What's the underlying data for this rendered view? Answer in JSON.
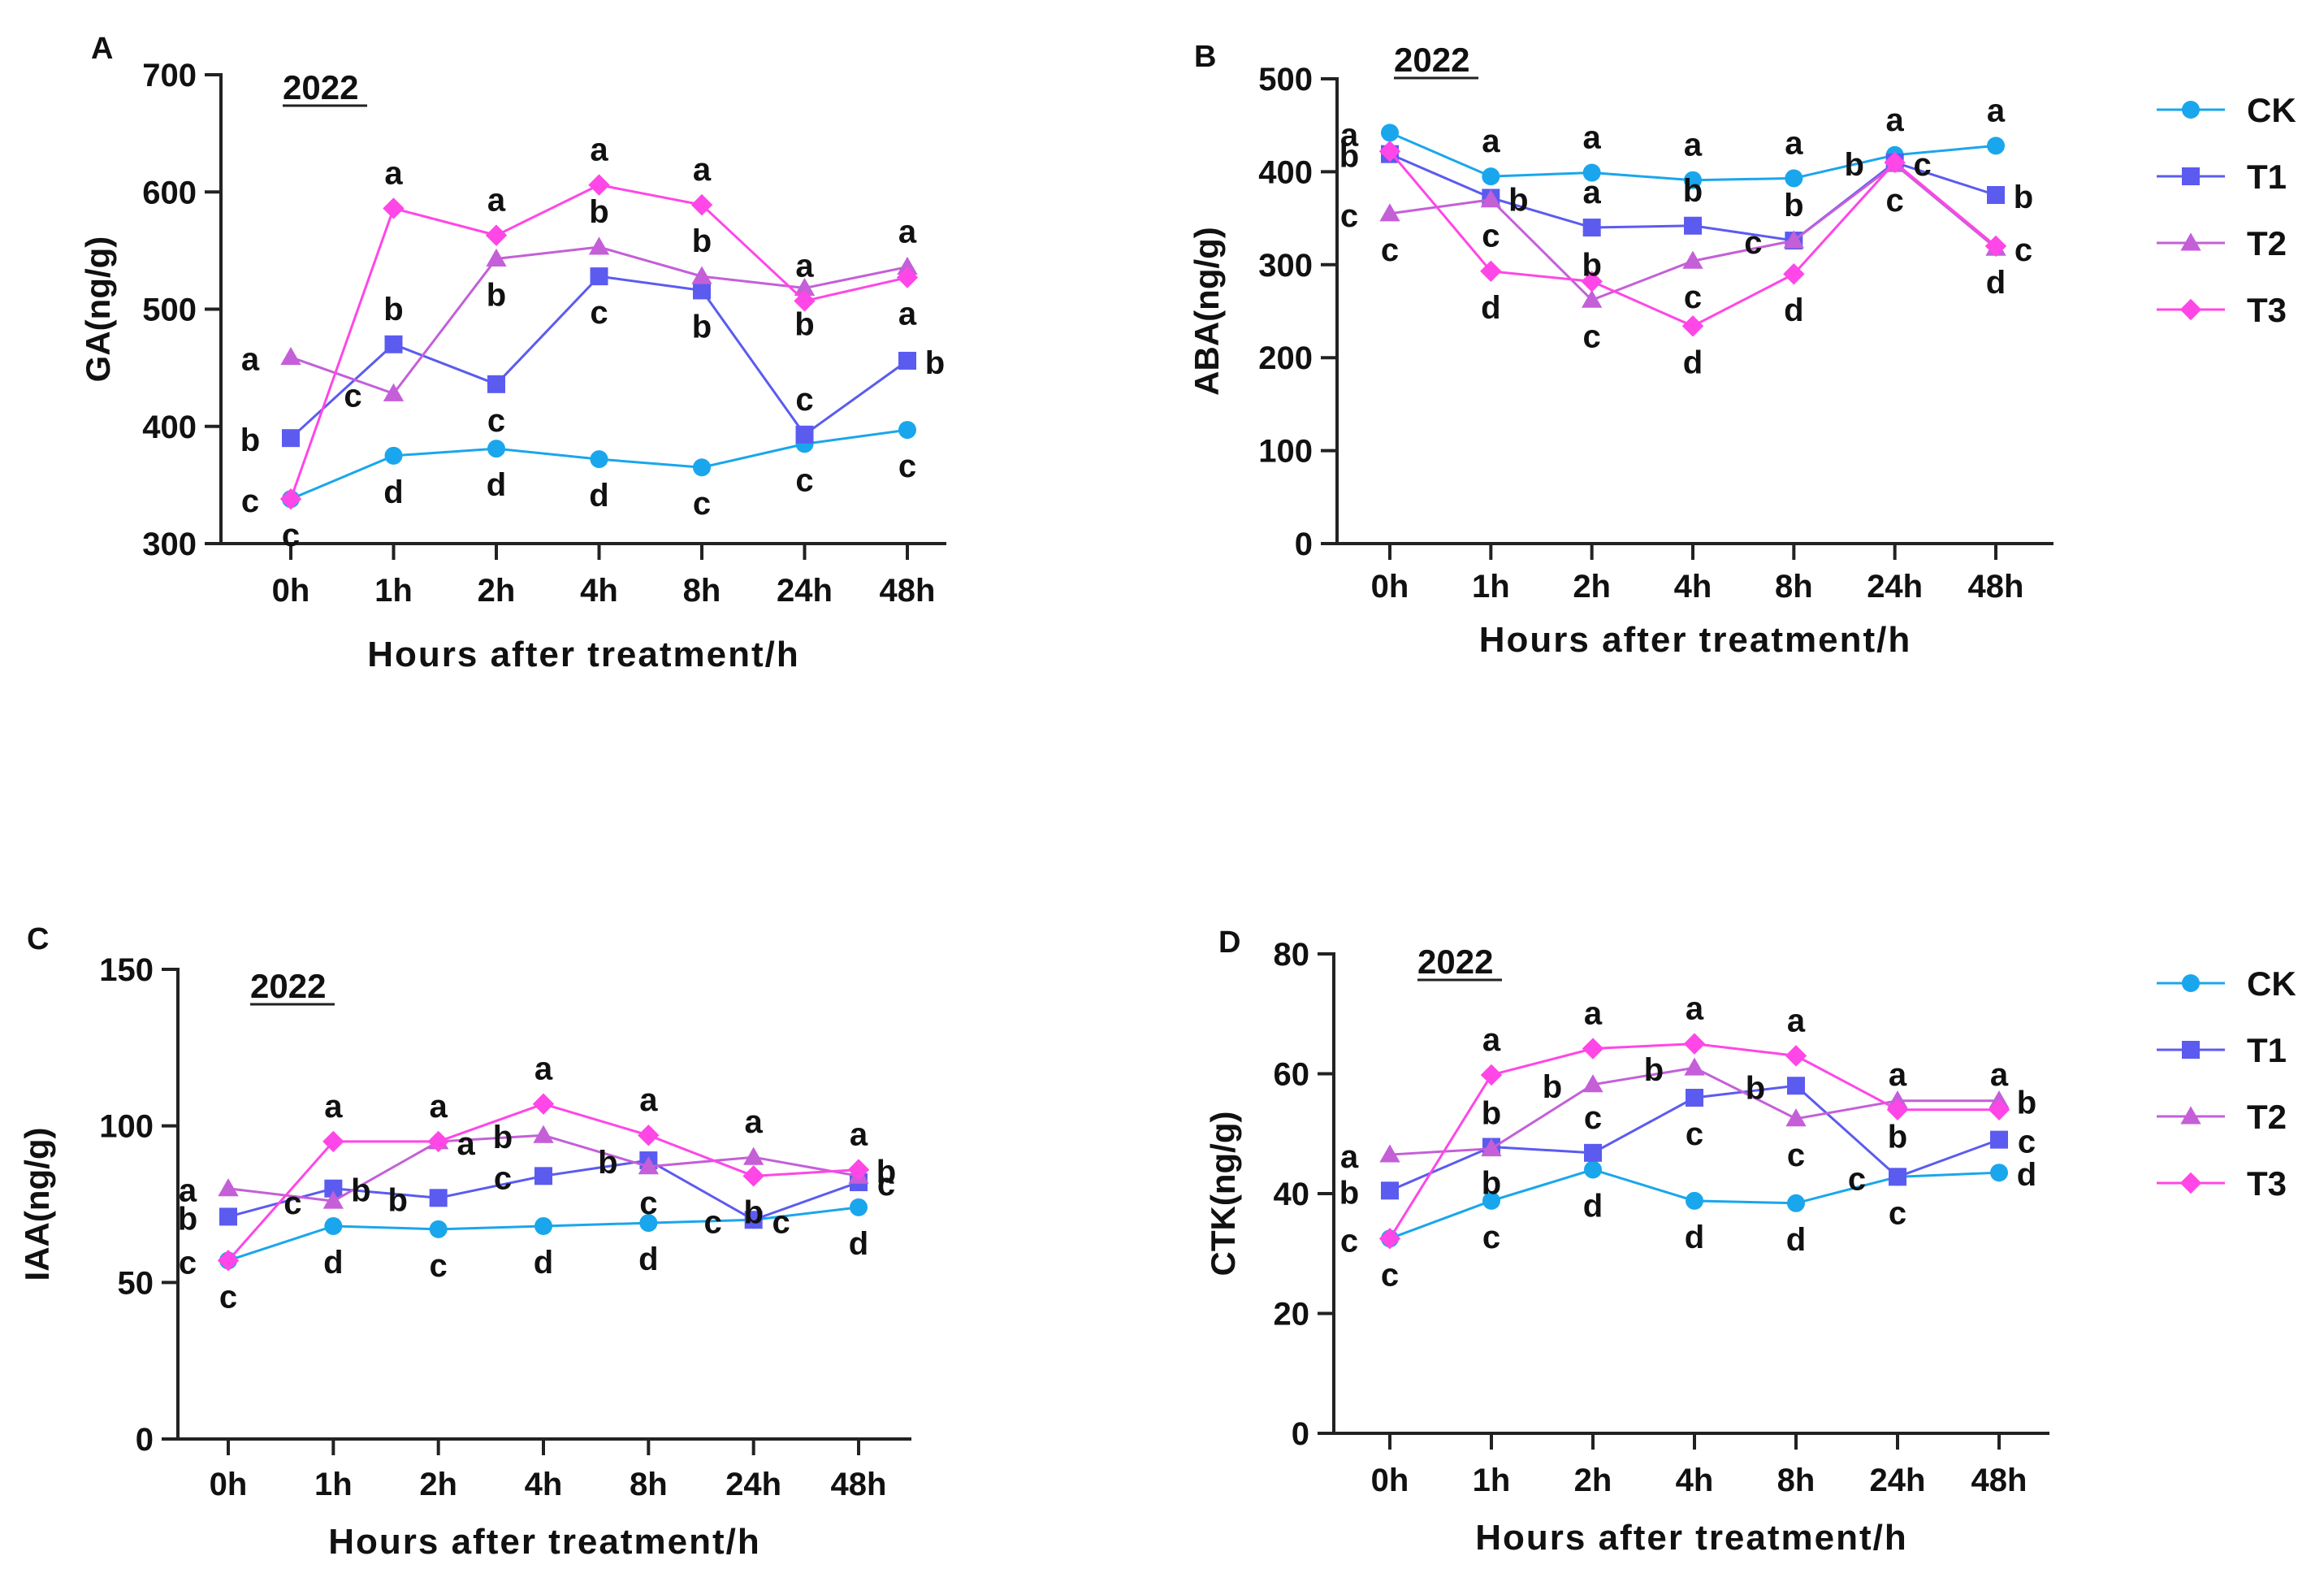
{
  "colors": {
    "CK": "#1aa6ec",
    "T1": "#5b5bf0",
    "T2": "#c45fd8",
    "T3": "#ff46e6",
    "axis": "#222222"
  },
  "legends": [
    {
      "items": [
        {
          "name": "CK",
          "marker": "circle"
        },
        {
          "name": "T1",
          "marker": "square"
        },
        {
          "name": "T2",
          "marker": "triangle"
        },
        {
          "name": "T3",
          "marker": "diamond"
        }
      ]
    },
    {
      "items": [
        {
          "name": "CK",
          "marker": "circle"
        },
        {
          "name": "T1",
          "marker": "square"
        },
        {
          "name": "T2",
          "marker": "triangle"
        },
        {
          "name": "T3",
          "marker": "diamond"
        }
      ]
    }
  ],
  "chart_data": [
    {
      "type": "line",
      "panel": "A",
      "year": "2022",
      "xlabel": "Hours after treatment/h",
      "ylabel": "GA(ng/g)",
      "categories": [
        "0h",
        "1h",
        "2h",
        "4h",
        "8h",
        "24h",
        "48h"
      ],
      "ylim": [
        300,
        700
      ],
      "yticks": [
        300,
        400,
        500,
        600,
        700
      ],
      "series": [
        {
          "name": "CK",
          "values": [
            338,
            375,
            381,
            372,
            365,
            385,
            397
          ]
        },
        {
          "name": "T1",
          "values": [
            390,
            470,
            436,
            528,
            516,
            393,
            456
          ]
        },
        {
          "name": "T2",
          "values": [
            459,
            428,
            543,
            553,
            528,
            518,
            536
          ]
        },
        {
          "name": "T3",
          "values": [
            338,
            586,
            563,
            606,
            589,
            507,
            527
          ]
        }
      ],
      "annotations": [
        {
          "text": "c",
          "series": "CK",
          "cat": 0,
          "side": "left"
        },
        {
          "text": "c",
          "series": "CK",
          "cat": 0,
          "side": "below"
        },
        {
          "text": "d",
          "series": "CK",
          "cat": 1,
          "side": "below"
        },
        {
          "text": "d",
          "series": "CK",
          "cat": 2,
          "side": "below"
        },
        {
          "text": "d",
          "series": "CK",
          "cat": 3,
          "side": "below"
        },
        {
          "text": "c",
          "series": "CK",
          "cat": 4,
          "side": "below"
        },
        {
          "text": "c",
          "series": "CK",
          "cat": 5,
          "side": "below"
        },
        {
          "text": "c",
          "series": "CK",
          "cat": 6,
          "side": "below"
        },
        {
          "text": "b",
          "series": "T1",
          "cat": 0,
          "side": "left"
        },
        {
          "text": "b",
          "series": "T1",
          "cat": 1,
          "side": "above"
        },
        {
          "text": "c",
          "series": "T1",
          "cat": 2,
          "side": "below"
        },
        {
          "text": "c",
          "series": "T1",
          "cat": 3,
          "side": "below"
        },
        {
          "text": "b",
          "series": "T1",
          "cat": 4,
          "side": "below"
        },
        {
          "text": "c",
          "series": "T1",
          "cat": 5,
          "side": "above"
        },
        {
          "text": "b",
          "series": "T1",
          "cat": 6,
          "side": "right"
        },
        {
          "text": "a",
          "series": "T2",
          "cat": 0,
          "side": "left"
        },
        {
          "text": "c",
          "series": "T2",
          "cat": 1,
          "side": "left"
        },
        {
          "text": "b",
          "series": "T2",
          "cat": 2,
          "side": "below"
        },
        {
          "text": "b",
          "series": "T2",
          "cat": 3,
          "side": "above"
        },
        {
          "text": "b",
          "series": "T2",
          "cat": 4,
          "side": "above"
        },
        {
          "text": "b",
          "series": "T2",
          "cat": 5,
          "side": "below"
        },
        {
          "text": "a",
          "series": "T2",
          "cat": 6,
          "side": "above"
        },
        {
          "text": "a",
          "series": "T3",
          "cat": 1,
          "side": "above"
        },
        {
          "text": "a",
          "series": "T3",
          "cat": 2,
          "side": "above"
        },
        {
          "text": "a",
          "series": "T3",
          "cat": 3,
          "side": "above"
        },
        {
          "text": "a",
          "series": "T3",
          "cat": 4,
          "side": "above"
        },
        {
          "text": "a",
          "series": "T3",
          "cat": 5,
          "side": "above"
        },
        {
          "text": "a",
          "series": "T3",
          "cat": 6,
          "side": "below"
        }
      ]
    },
    {
      "type": "line",
      "panel": "B",
      "year": "2022",
      "xlabel": "Hours after treatment/h",
      "ylabel": "ABA(ng/g)",
      "categories": [
        "0h",
        "1h",
        "2h",
        "4h",
        "8h",
        "24h",
        "48h"
      ],
      "ylim": [
        0,
        500
      ],
      "yticks": [
        0,
        100,
        200,
        300,
        400,
        500
      ],
      "series": [
        {
          "name": "CK",
          "values": [
            442,
            395,
            399,
            391,
            393,
            418,
            428
          ]
        },
        {
          "name": "T1",
          "values": [
            419,
            372,
            340,
            342,
            326,
            410,
            375
          ]
        },
        {
          "name": "T2",
          "values": [
            355,
            370,
            262,
            304,
            326,
            408,
            318
          ]
        },
        {
          "name": "T3",
          "values": [
            422,
            293,
            282,
            234,
            290,
            410,
            320
          ]
        }
      ],
      "annotations": [
        {
          "text": "a",
          "series": "CK",
          "cat": 0,
          "side": "left"
        },
        {
          "text": "a",
          "series": "CK",
          "cat": 1,
          "side": "above"
        },
        {
          "text": "a",
          "series": "CK",
          "cat": 2,
          "side": "above"
        },
        {
          "text": "a",
          "series": "CK",
          "cat": 3,
          "side": "above"
        },
        {
          "text": "a",
          "series": "CK",
          "cat": 4,
          "side": "above"
        },
        {
          "text": "a",
          "series": "CK",
          "cat": 5,
          "side": "above"
        },
        {
          "text": "a",
          "series": "CK",
          "cat": 6,
          "side": "above"
        },
        {
          "text": "b",
          "series": "T1",
          "cat": 0,
          "side": "left"
        },
        {
          "text": "b",
          "series": "T1",
          "cat": 1,
          "side": "right"
        },
        {
          "text": "a",
          "series": "T1",
          "cat": 2,
          "side": "above"
        },
        {
          "text": "b",
          "series": "T1",
          "cat": 3,
          "side": "above"
        },
        {
          "text": "b",
          "series": "T1",
          "cat": 4,
          "side": "above"
        },
        {
          "text": "b",
          "series": "T1",
          "cat": 5,
          "side": "left"
        },
        {
          "text": "b",
          "series": "T1",
          "cat": 6,
          "side": "right"
        },
        {
          "text": "c",
          "series": "T2",
          "cat": 0,
          "side": "left"
        },
        {
          "text": "c",
          "series": "T2",
          "cat": 0,
          "side": "below"
        },
        {
          "text": "c",
          "series": "T2",
          "cat": 1,
          "side": "below"
        },
        {
          "text": "b",
          "series": "T2",
          "cat": 2,
          "side": "above"
        },
        {
          "text": "c",
          "series": "T2",
          "cat": 2,
          "side": "below"
        },
        {
          "text": "c",
          "series": "T2",
          "cat": 3,
          "side": "below"
        },
        {
          "text": "c",
          "series": "T2",
          "cat": 4,
          "side": "left"
        },
        {
          "text": "c",
          "series": "T2",
          "cat": 5,
          "side": "below"
        },
        {
          "text": "c",
          "series": "T2",
          "cat": 6,
          "side": "right"
        },
        {
          "text": "d",
          "series": "T3",
          "cat": 1,
          "side": "below"
        },
        {
          "text": "d",
          "series": "T3",
          "cat": 3,
          "side": "below"
        },
        {
          "text": "d",
          "series": "T3",
          "cat": 4,
          "side": "below"
        },
        {
          "text": "c",
          "series": "T3",
          "cat": 5,
          "side": "right"
        },
        {
          "text": "d",
          "series": "T3",
          "cat": 6,
          "side": "below"
        }
      ]
    },
    {
      "type": "line",
      "panel": "C",
      "year": "2022",
      "xlabel": "Hours after treatment/h",
      "ylabel": "IAA(ng/g)",
      "categories": [
        "0h",
        "1h",
        "2h",
        "4h",
        "8h",
        "24h",
        "48h"
      ],
      "ylim": [
        0,
        150
      ],
      "yticks": [
        0,
        50,
        100,
        150
      ],
      "series": [
        {
          "name": "CK",
          "values": [
            57,
            68,
            67,
            68,
            69,
            70,
            74
          ]
        },
        {
          "name": "T1",
          "values": [
            71,
            80,
            77,
            84,
            89,
            70,
            82
          ]
        },
        {
          "name": "T2",
          "values": [
            80,
            76,
            95,
            97,
            87,
            90,
            84
          ]
        },
        {
          "name": "T3",
          "values": [
            57,
            95,
            95,
            107,
            97,
            84,
            86
          ]
        }
      ],
      "annotations": [
        {
          "text": "c",
          "series": "CK",
          "cat": 0,
          "side": "left"
        },
        {
          "text": "c",
          "series": "CK",
          "cat": 0,
          "side": "below"
        },
        {
          "text": "d",
          "series": "CK",
          "cat": 1,
          "side": "below"
        },
        {
          "text": "c",
          "series": "CK",
          "cat": 2,
          "side": "below"
        },
        {
          "text": "d",
          "series": "CK",
          "cat": 3,
          "side": "below"
        },
        {
          "text": "d",
          "series": "CK",
          "cat": 4,
          "side": "below"
        },
        {
          "text": "c",
          "series": "CK",
          "cat": 5,
          "side": "right"
        },
        {
          "text": "d",
          "series": "CK",
          "cat": 6,
          "side": "below"
        },
        {
          "text": "b",
          "series": "T1",
          "cat": 0,
          "side": "left"
        },
        {
          "text": "b",
          "series": "T1",
          "cat": 1,
          "side": "right"
        },
        {
          "text": "b",
          "series": "T1",
          "cat": 2,
          "side": "left"
        },
        {
          "text": "c",
          "series": "T1",
          "cat": 3,
          "side": "left"
        },
        {
          "text": "b",
          "series": "T1",
          "cat": 4,
          "side": "left"
        },
        {
          "text": "c",
          "series": "T1",
          "cat": 5,
          "side": "left"
        },
        {
          "text": "c",
          "series": "T1",
          "cat": 6,
          "side": "right"
        },
        {
          "text": "a",
          "series": "T2",
          "cat": 0,
          "side": "left"
        },
        {
          "text": "c",
          "series": "T2",
          "cat": 1,
          "side": "left"
        },
        {
          "text": "a",
          "series": "T2",
          "cat": 2,
          "side": "right"
        },
        {
          "text": "b",
          "series": "T2",
          "cat": 3,
          "side": "left"
        },
        {
          "text": "c",
          "series": "T2",
          "cat": 4,
          "side": "below"
        },
        {
          "text": "a",
          "series": "T2",
          "cat": 5,
          "side": "above"
        },
        {
          "text": "b",
          "series": "T3",
          "cat": 5,
          "side": "below"
        },
        {
          "text": "a",
          "series": "T3",
          "cat": 1,
          "side": "above"
        },
        {
          "text": "a",
          "series": "T3",
          "cat": 2,
          "side": "above"
        },
        {
          "text": "a",
          "series": "T3",
          "cat": 3,
          "side": "above"
        },
        {
          "text": "a",
          "series": "T3",
          "cat": 4,
          "side": "above"
        },
        {
          "text": "a",
          "series": "T3",
          "cat": 6,
          "side": "above"
        },
        {
          "text": "b",
          "series": "T3",
          "cat": 6,
          "side": "right"
        }
      ]
    },
    {
      "type": "line",
      "panel": "D",
      "year": "2022",
      "xlabel": "Hours after treatment/h",
      "ylabel": "CTK(ng/g)",
      "categories": [
        "0h",
        "1h",
        "2h",
        "4h",
        "8h",
        "24h",
        "48h"
      ],
      "ylim": [
        0,
        80
      ],
      "yticks": [
        0,
        20,
        40,
        60,
        80
      ],
      "series": [
        {
          "name": "CK",
          "values": [
            32.5,
            38.8,
            44.0,
            38.8,
            38.4,
            42.8,
            43.5
          ]
        },
        {
          "name": "T1",
          "values": [
            40.5,
            47.8,
            46.8,
            56.0,
            58.0,
            42.8,
            49.0
          ]
        },
        {
          "name": "T2",
          "values": [
            46.5,
            47.5,
            58.2,
            61.0,
            52.5,
            55.5,
            55.5
          ]
        },
        {
          "name": "T3",
          "values": [
            32.5,
            59.8,
            64.2,
            65.0,
            63.0,
            54.0,
            54.0
          ]
        }
      ],
      "annotations": [
        {
          "text": "c",
          "series": "CK",
          "cat": 0,
          "side": "left"
        },
        {
          "text": "c",
          "series": "CK",
          "cat": 0,
          "side": "below"
        },
        {
          "text": "c",
          "series": "CK",
          "cat": 1,
          "side": "below"
        },
        {
          "text": "d",
          "series": "CK",
          "cat": 2,
          "side": "below"
        },
        {
          "text": "d",
          "series": "CK",
          "cat": 3,
          "side": "below"
        },
        {
          "text": "d",
          "series": "CK",
          "cat": 4,
          "side": "below"
        },
        {
          "text": "c",
          "series": "CK",
          "cat": 5,
          "side": "below"
        },
        {
          "text": "d",
          "series": "CK",
          "cat": 6,
          "side": "right"
        },
        {
          "text": "b",
          "series": "T1",
          "cat": 0,
          "side": "left"
        },
        {
          "text": "b",
          "series": "T1",
          "cat": 1,
          "side": "below"
        },
        {
          "text": "c",
          "series": "T1",
          "cat": 2,
          "side": "above"
        },
        {
          "text": "c",
          "series": "T1",
          "cat": 3,
          "side": "below"
        },
        {
          "text": "b",
          "series": "T1",
          "cat": 4,
          "side": "left"
        },
        {
          "text": "c",
          "series": "T1",
          "cat": 5,
          "side": "left"
        },
        {
          "text": "c",
          "series": "T1",
          "cat": 6,
          "side": "right"
        },
        {
          "text": "a",
          "series": "T2",
          "cat": 0,
          "side": "left"
        },
        {
          "text": "b",
          "series": "T2",
          "cat": 1,
          "side": "above"
        },
        {
          "text": "b",
          "series": "T2",
          "cat": 2,
          "side": "left"
        },
        {
          "text": "b",
          "series": "T2",
          "cat": 3,
          "side": "left"
        },
        {
          "text": "c",
          "series": "T2",
          "cat": 4,
          "side": "below"
        },
        {
          "text": "b",
          "series": "T2",
          "cat": 5,
          "side": "below"
        },
        {
          "text": "b",
          "series": "T2",
          "cat": 6,
          "side": "right"
        },
        {
          "text": "a",
          "series": "T3",
          "cat": 1,
          "side": "above"
        },
        {
          "text": "a",
          "series": "T3",
          "cat": 2,
          "side": "above"
        },
        {
          "text": "a",
          "series": "T3",
          "cat": 3,
          "side": "above"
        },
        {
          "text": "a",
          "series": "T3",
          "cat": 4,
          "side": "above"
        },
        {
          "text": "a",
          "series": "T3",
          "cat": 5,
          "side": "above"
        },
        {
          "text": "a",
          "series": "T3",
          "cat": 6,
          "side": "above"
        }
      ]
    }
  ]
}
